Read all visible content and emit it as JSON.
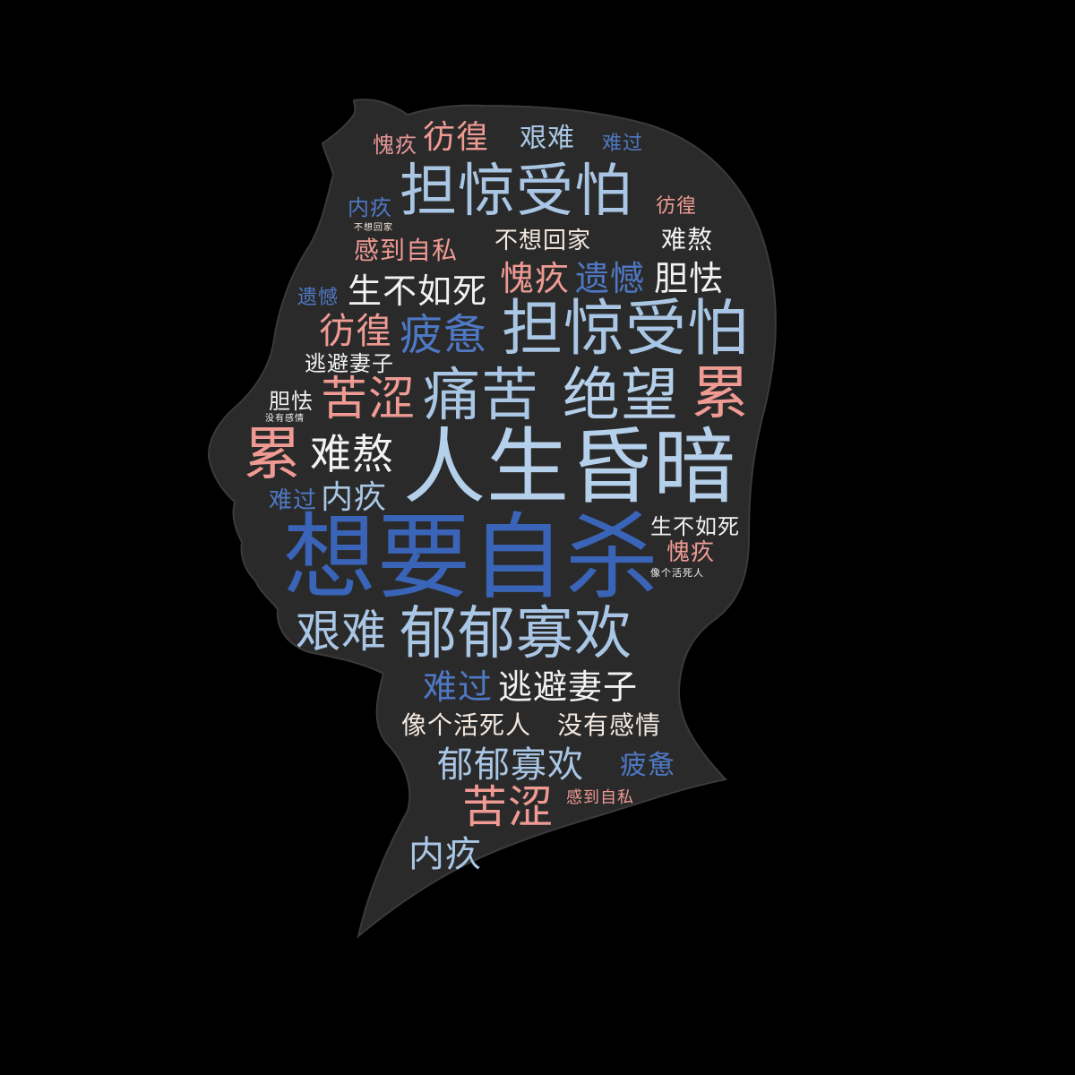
{
  "words": [
    {
      "text": "愧疚",
      "color": "#e49696"
    },
    {
      "text": "彷徨",
      "color": "#ef9a93"
    },
    {
      "text": "艰难",
      "color": "#a9c6e4"
    },
    {
      "text": "难过",
      "color": "#4f78c4"
    },
    {
      "text": "担惊受怕",
      "color": "#a9c6e4"
    },
    {
      "text": "内疚",
      "color": "#4f78c4"
    },
    {
      "text": "彷徨",
      "color": "#ef9a93"
    },
    {
      "text": "不想回家",
      "color": "#f3e8df"
    },
    {
      "text": "不想回家",
      "color": "#f3e8df"
    },
    {
      "text": "感到自私",
      "color": "#ef9a93"
    },
    {
      "text": "难熬",
      "color": "#f2f2f2"
    },
    {
      "text": "遗憾",
      "color": "#4f78c4"
    },
    {
      "text": "生不如死",
      "color": "#f2f2f2"
    },
    {
      "text": "愧疚",
      "color": "#ef9a93"
    },
    {
      "text": "遗憾",
      "color": "#4f78c4"
    },
    {
      "text": "胆怯",
      "color": "#f2f2f2"
    },
    {
      "text": "彷徨",
      "color": "#ef9a93"
    },
    {
      "text": "疲惫",
      "color": "#4f78c4"
    },
    {
      "text": "担惊受怕",
      "color": "#a9c6e4"
    },
    {
      "text": "逃避妻子",
      "color": "#f2f2f2"
    },
    {
      "text": "胆怯",
      "color": "#f2f2f2"
    },
    {
      "text": "没有感情",
      "color": "#f2f2f2"
    },
    {
      "text": "苦涩",
      "color": "#ef9a93"
    },
    {
      "text": "痛苦",
      "color": "#a9c6e4"
    },
    {
      "text": "绝望",
      "color": "#b5d0ea"
    },
    {
      "text": "累",
      "color": "#ef9a93"
    },
    {
      "text": "累",
      "color": "#ef9a93"
    },
    {
      "text": "难熬",
      "color": "#f2f2f2"
    },
    {
      "text": "人生昏暗",
      "color": "#b5d0ea"
    },
    {
      "text": "难过",
      "color": "#4f78c4"
    },
    {
      "text": "内疚",
      "color": "#a9c6e4"
    },
    {
      "text": "生不如死",
      "color": "#f2f2f2"
    },
    {
      "text": "想要自杀",
      "color": "#3a64b8"
    },
    {
      "text": "愧疚",
      "color": "#ef9a93"
    },
    {
      "text": "像个活死人",
      "color": "#f2f2f2"
    },
    {
      "text": "艰难",
      "color": "#a9c6e4"
    },
    {
      "text": "郁郁寡欢",
      "color": "#a9c6e4"
    },
    {
      "text": "难过",
      "color": "#4f78c4"
    },
    {
      "text": "逃避妻子",
      "color": "#f2f2f2"
    },
    {
      "text": "像个活死人",
      "color": "#f3e8df"
    },
    {
      "text": "没有感情",
      "color": "#f3e8df"
    },
    {
      "text": "郁郁寡欢",
      "color": "#a9c6e4"
    },
    {
      "text": "疲惫",
      "color": "#4f78c4"
    },
    {
      "text": "苦涩",
      "color": "#ef9a93"
    },
    {
      "text": "感到自私",
      "color": "#ef9a93"
    },
    {
      "text": "内疚",
      "color": "#a9c6e4"
    }
  ]
}
